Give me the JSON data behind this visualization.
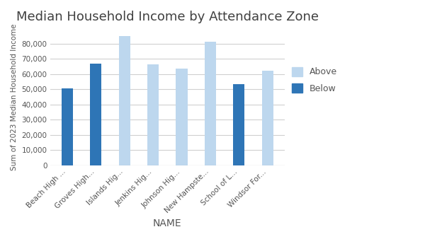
{
  "title": "Median Household Income by Attendance Zone",
  "xlabel": "NAME",
  "ylabel": "Sum of 2023 Median Household Income",
  "categories": [
    "Beach High ...",
    "Groves High...",
    "Islands Hig...",
    "Jenkins Hig...",
    "Johnson Hig...",
    "New Hampste...",
    "School of L...",
    "Windsor For..."
  ],
  "values": [
    50500,
    67000,
    85000,
    66500,
    63500,
    81000,
    53500,
    62000
  ],
  "types": [
    "Below",
    "Below",
    "Above",
    "Above",
    "Above",
    "Above",
    "Below",
    "Above"
  ],
  "color_above": "#bdd7ee",
  "color_below": "#2e75b6",
  "ylim": [
    0,
    90000
  ],
  "yticks": [
    0,
    10000,
    20000,
    30000,
    40000,
    50000,
    60000,
    70000,
    80000
  ],
  "background_color": "#ffffff",
  "title_fontsize": 13,
  "axis_label_fontsize": 10,
  "tick_fontsize": 7.5,
  "bar_width": 0.4
}
